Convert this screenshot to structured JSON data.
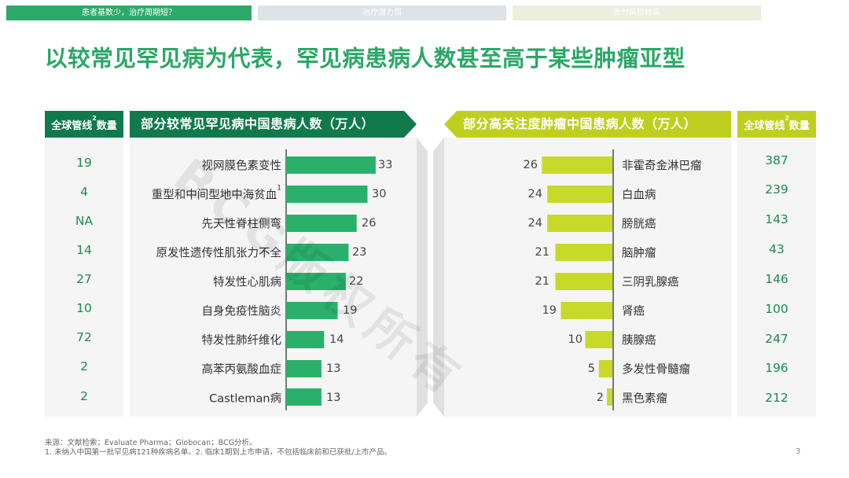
{
  "tabs": [
    "患者基数少，治疗周期短？",
    "治疗潜力弱",
    "支付风险较高"
  ],
  "title": "以较常见罕见病为代表，罕见病患病人数甚至高于某些肿瘤亚型",
  "left_pipeline_header": {
    "text": "全球管线",
    "sup": "2",
    "suffix": "数量"
  },
  "right_pipeline_header": {
    "text": "全球管线",
    "sup": "2",
    "suffix": "数量"
  },
  "watermark": "BCG版权所有",
  "chart_data": [
    {
      "type": "bar",
      "orientation": "horizontal",
      "title": "部分较常见罕见病中国患病人数（万人）",
      "categories": [
        "视网膜色素变性",
        "重型和中间型地中海贫血",
        "先天性脊柱侧弯",
        "原发性遗传性肌张力不全",
        "特发性心肌病",
        "自身免疫性脑炎",
        "特发性肺纤维化",
        "高苯丙氨酸血症",
        "Castleman病"
      ],
      "category_footnotes": [
        "",
        "1",
        "",
        "",
        "",
        "",
        "",
        "",
        ""
      ],
      "values": [
        33,
        30,
        26,
        23,
        22,
        19,
        14,
        13,
        13
      ],
      "pipeline_counts": [
        "19",
        "4",
        "NA",
        "14",
        "27",
        "10",
        "72",
        "2",
        "2"
      ],
      "bar_color": "#2bb06c"
    },
    {
      "type": "bar",
      "orientation": "horizontal",
      "title": "部分高关注度肿瘤中国患病人数（万人）",
      "categories": [
        "非霍奇金淋巴瘤",
        "白血病",
        "膀胱癌",
        "脑肿瘤",
        "三阴乳腺癌",
        "肾癌",
        "胰腺癌",
        "多发性骨髓瘤",
        "黑色素瘤"
      ],
      "values": [
        26,
        24,
        24,
        21,
        21,
        19,
        10,
        5,
        2
      ],
      "pipeline_counts": [
        "387",
        "239",
        "143",
        "43",
        "146",
        "100",
        "247",
        "196",
        "212"
      ],
      "bar_color": "#c7da2a"
    }
  ],
  "footnotes": {
    "source": "来源：文献检索；Evaluate Pharma；Globocan；BCG分析。",
    "note": "1. 未纳入中国第一批罕见病121种疾病名单。2. 临床1期到上市申请，不包括临床前和已获批/上市产品。"
  },
  "page_number": "3",
  "colors": {
    "accent_green": "#2aa866",
    "dark_green": "#107a4d",
    "bar_green": "#2bb06c",
    "bar_lime": "#c7da2a",
    "header_lime": "#bfcf1f"
  }
}
